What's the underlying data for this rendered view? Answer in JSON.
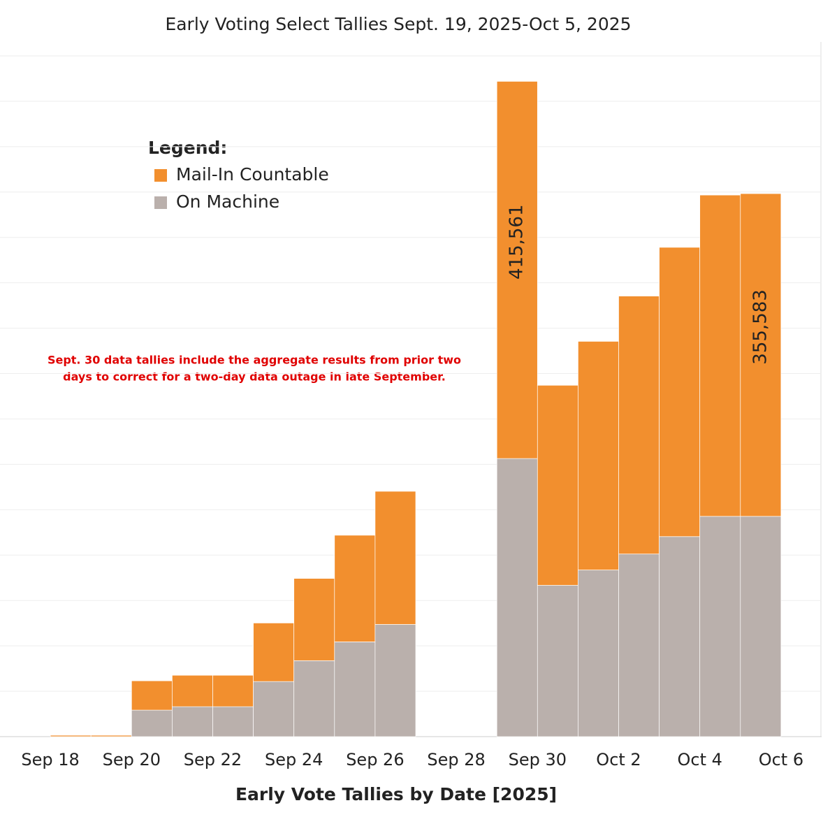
{
  "chart_data": {
    "type": "bar",
    "stacked": true,
    "title": "Early Voting Select Tallies Sept. 19, 2025-Oct 5, 2025",
    "x_label": "Early Vote Tallies by Date [2025]",
    "legend_title": "Legend:",
    "annotation": [
      "Sept. 30 data tallies include the aggregate results from prior two",
      "days to correct for a two-day data outage in late September."
    ],
    "x": [
      "2025-09-19",
      "2025-09-20",
      "2025-09-21",
      "2025-09-22",
      "2025-09-23",
      "2025-09-24",
      "2025-09-25",
      "2025-09-26",
      "2025-09-27",
      "2025-09-28",
      "2025-09-29",
      "2025-09-30",
      "2025-10-01",
      "2025-10-02",
      "2025-10-03",
      "2025-10-04",
      "2025-10-05",
      "2025-10-06"
    ],
    "series": [
      {
        "name": "Mail-In Countable",
        "color": "#f28f2e",
        "values": [
          1500,
          1500,
          32300,
          34600,
          34600,
          64500,
          90600,
          117500,
          146700,
          null,
          null,
          415561,
          220400,
          251900,
          284200,
          318700,
          354000,
          355583
        ],
        "value_labels": [
          null,
          null,
          null,
          null,
          null,
          null,
          null,
          null,
          null,
          null,
          null,
          "415,561",
          null,
          null,
          null,
          null,
          null,
          "355,583"
        ]
      },
      {
        "name": "On Machine",
        "color": "#bab0ac",
        "values": [
          0,
          0,
          29200,
          33000,
          33000,
          60700,
          83700,
          104400,
          123600,
          null,
          null,
          306400,
          166700,
          183600,
          201200,
          220400,
          242700,
          242700
        ]
      }
    ],
    "xlim": [
      "2025-09-17",
      "2025-10-07"
    ],
    "xticks": [
      {
        "value": "2025-09-18",
        "label": "Sep 18"
      },
      {
        "value": "2025-09-20",
        "label": "Sep 20"
      },
      {
        "value": "2025-09-22",
        "label": "Sep 22"
      },
      {
        "value": "2025-09-24",
        "label": "Sep 24"
      },
      {
        "value": "2025-09-26",
        "label": "Sep 26"
      },
      {
        "value": "2025-09-28",
        "label": "Sep 28"
      },
      {
        "value": "2025-09-30",
        "label": "Sep 30"
      },
      {
        "value": "2025-10-02",
        "label": "Oct 2"
      },
      {
        "value": "2025-10-04",
        "label": "Oct 4"
      },
      {
        "value": "2025-10-06",
        "label": "Oct 6"
      }
    ],
    "ylim": [
      0,
      750000
    ],
    "yticks": [
      0,
      50000,
      100000,
      150000,
      200000,
      250000,
      300000,
      350000,
      400000,
      450000,
      500000,
      550000,
      600000,
      650000,
      700000,
      750000
    ],
    "grid": true
  }
}
